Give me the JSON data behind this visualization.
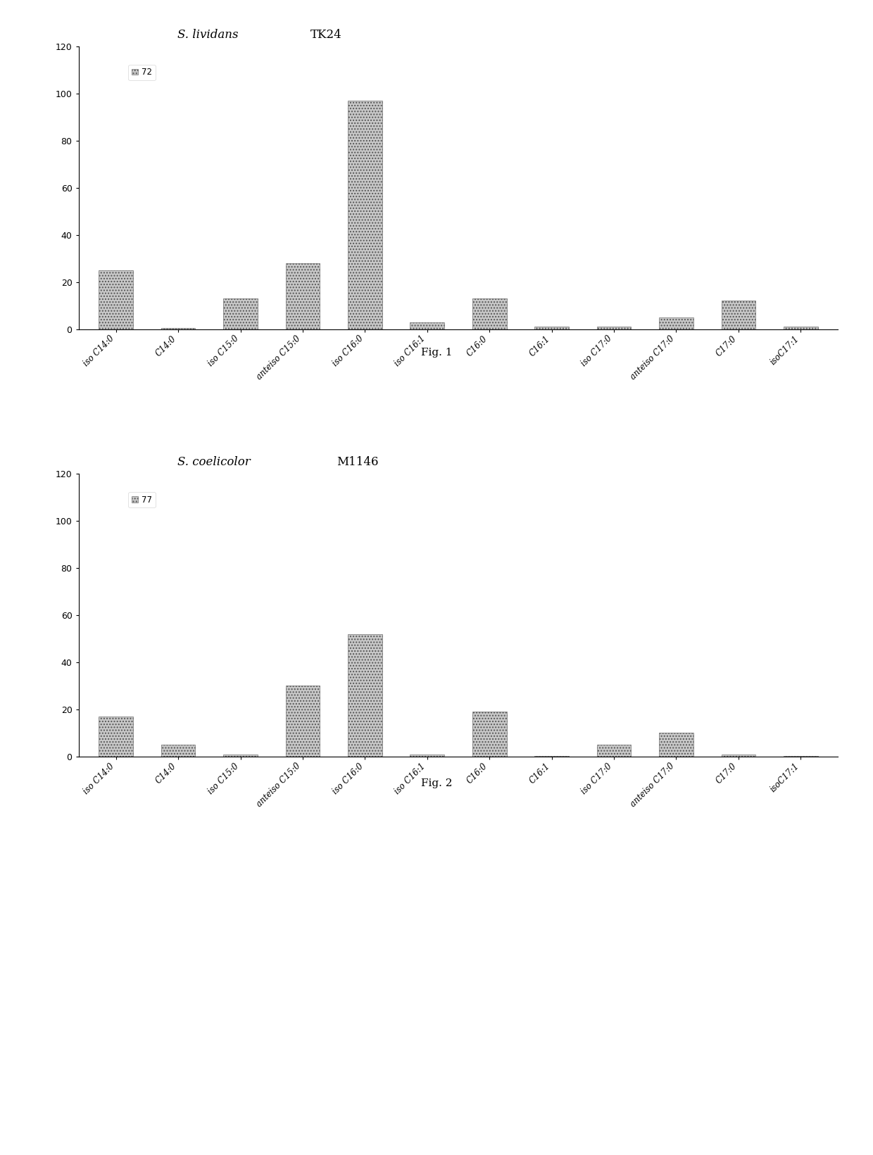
{
  "chart1": {
    "title_italic": "S. lividans",
    "title_regular": "TK24",
    "legend_label": "72",
    "categories": [
      "iso C14:0",
      "C14:0",
      "iso C15:0",
      "anteiso C15:0",
      "iso C16:0",
      "iso C16:1",
      "C16:0",
      "C16:1",
      "iso C17:0",
      "anteiso C17:0",
      "C17:0",
      "isoC17:1"
    ],
    "values": [
      25,
      0.5,
      13,
      28,
      97,
      3,
      13,
      1,
      1,
      5,
      12,
      1
    ],
    "ylim": [
      0,
      120
    ],
    "yticks": [
      0,
      20,
      40,
      60,
      80,
      100,
      120
    ]
  },
  "chart2": {
    "title_italic": "S. coelicolor",
    "title_regular": "M1146",
    "legend_label": "77",
    "categories": [
      "iso C14:0",
      "C14:0",
      "iso C15:0",
      "anteiso C15:0",
      "iso C16:0",
      "iso C16:1",
      "C16:0",
      "C16:1",
      "iso C17:0",
      "anteiso C17:0",
      "C17:0",
      "isoC17:1"
    ],
    "values": [
      17,
      5,
      1,
      30,
      52,
      1,
      19,
      0.3,
      5,
      10,
      1,
      0.3
    ],
    "ylim": [
      0,
      120
    ],
    "yticks": [
      0,
      20,
      40,
      60,
      80,
      100,
      120
    ]
  },
  "bar_color": "#c8c8c8",
  "bar_edgecolor": "#555555",
  "bar_hatch": "....",
  "fig_caption1": "Fig. 1",
  "fig_caption2": "Fig. 2",
  "background_color": "#ffffff",
  "fig_width": 12.4,
  "fig_height": 16.41
}
